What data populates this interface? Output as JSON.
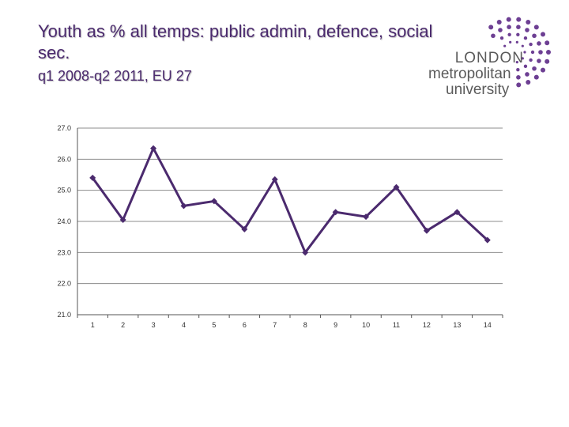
{
  "header": {
    "title": "Youth as % all temps: public admin, defence, social sec.",
    "subtitle": "q1 2008-q2 2011, EU 27"
  },
  "logo": {
    "line1": "LONDON",
    "line2": "metropolitan",
    "line3": "university"
  },
  "colors": {
    "accent": "#4b2a6e",
    "grid": "#8c8c8c",
    "logo_dots": "#6d3f93"
  },
  "chart_data": {
    "type": "line",
    "categories": [
      "1",
      "2",
      "3",
      "4",
      "5",
      "6",
      "7",
      "8",
      "9",
      "10",
      "11",
      "12",
      "13",
      "14"
    ],
    "series": [
      {
        "values": [
          25.4,
          24.05,
          26.35,
          24.5,
          24.65,
          23.75,
          25.35,
          23.0,
          24.3,
          24.15,
          25.1,
          23.7,
          24.3,
          23.4
        ]
      }
    ],
    "y_ticks": [
      "27.0",
      "26.0",
      "25.0",
      "24.0",
      "23.0",
      "22.0",
      "21.0"
    ],
    "ylim": [
      21,
      27
    ],
    "grid": true,
    "legend": "none"
  }
}
